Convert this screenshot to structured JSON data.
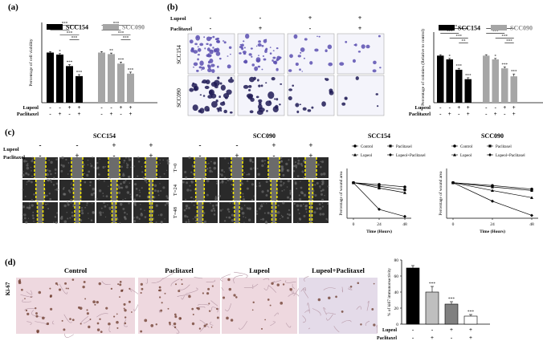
{
  "panels": {
    "a": "(a)",
    "b": "(b)",
    "c": "(c)",
    "d": "(d)"
  },
  "lines": {
    "scc154": "SCC154",
    "scc090": "SCC090"
  },
  "treatments": {
    "lupeol": "Lupeol",
    "paclitaxel": "Paclitaxel",
    "lupeol_row": [
      "-",
      "-",
      "+",
      "+"
    ],
    "paclitaxel_row": [
      "-",
      "+",
      "-",
      "+"
    ],
    "d_lupeol_row": [
      "-",
      "-",
      "+",
      "+"
    ],
    "d_paclitaxel_row": [
      "-",
      "+",
      "-",
      "+"
    ]
  },
  "micrograph_rows": {
    "c": [
      "T=0",
      "T=24",
      "T=48"
    ],
    "d_row": "Ki-67"
  },
  "ihc_titles": [
    "Control",
    "Paclitaxel",
    "Lupeol",
    "Lupeol+Paclitaxel"
  ],
  "colors": {
    "black": "#000000",
    "grey": "#a6a6a6",
    "stain": "#5a4fb0",
    "ihc_bg": "#eed8df",
    "ihc_nuclei": "#6b3a2a"
  },
  "chart_data": [
    {
      "id": "a",
      "type": "bar",
      "ylabel": "Percentage of cell viability",
      "categories": [
        "Control",
        "Paclitaxel",
        "Lupeol",
        "Lupeol+Paclitaxel"
      ],
      "series": [
        {
          "name": "SCC154",
          "values": [
            100,
            96,
            73,
            53
          ],
          "errors": [
            2,
            2,
            3,
            3
          ],
          "marks": [
            "",
            "*",
            "***",
            "***"
          ]
        },
        {
          "name": "SCC090",
          "values": [
            100,
            97,
            78,
            58
          ],
          "errors": [
            2,
            2,
            3,
            3
          ],
          "marks": [
            "",
            "**",
            "***",
            "***"
          ]
        }
      ],
      "ylim": [
        0,
        160
      ],
      "significance": "***",
      "legend": "top"
    },
    {
      "id": "b",
      "type": "bar",
      "ylabel": "Percentage of colonies (Relative to control)",
      "categories": [
        "Control",
        "Paclitaxel",
        "Lupeol",
        "Lupeol+Paclitaxel"
      ],
      "series": [
        {
          "name": "SCC154",
          "values": [
            100,
            92,
            70,
            50
          ],
          "errors": [
            2,
            2,
            3,
            3
          ],
          "marks": [
            "",
            "*",
            "***",
            "***"
          ]
        },
        {
          "name": "SCC090",
          "values": [
            100,
            92,
            73,
            56
          ],
          "errors": [
            2,
            2,
            3,
            5
          ],
          "marks": [
            "",
            "*",
            "***",
            "***"
          ]
        }
      ],
      "ylim": [
        0,
        150
      ],
      "extra_significance": "**",
      "legend": "top"
    },
    {
      "id": "c1",
      "type": "line",
      "title": "SCC154",
      "xlabel": "Time (Hours)",
      "ylabel": "Percentage of wound area",
      "x": [
        0,
        24,
        48
      ],
      "series": [
        {
          "name": "Control",
          "values": [
            100,
            95,
            88
          ]
        },
        {
          "name": "Paclitaxel",
          "values": [
            100,
            90,
            80
          ]
        },
        {
          "name": "Lupeol",
          "values": [
            100,
            85,
            72
          ]
        },
        {
          "name": "Lupeol+Paclitaxel",
          "values": [
            100,
            25,
            5
          ]
        }
      ],
      "xticks": [
        0,
        24,
        48
      ],
      "ylim": [
        0,
        140
      ],
      "legend": "top"
    },
    {
      "id": "c2",
      "type": "line",
      "title": "SCC090",
      "xlabel": "Time (Hours)",
      "ylabel": "Percentage of wound area",
      "x": [
        0,
        24,
        48
      ],
      "series": [
        {
          "name": "Control",
          "values": [
            100,
            92,
            82
          ]
        },
        {
          "name": "Paclitaxel",
          "values": [
            100,
            88,
            78
          ]
        },
        {
          "name": "Lupeol",
          "values": [
            100,
            78,
            58
          ]
        },
        {
          "name": "Lupeol+Paclitaxel",
          "values": [
            100,
            48,
            8
          ]
        }
      ],
      "xticks": [
        0,
        24,
        48
      ],
      "ylim": [
        0,
        140
      ],
      "legend": "top"
    },
    {
      "id": "d",
      "type": "bar",
      "ylabel": "% of ki67 immunoreactivity",
      "categories": [
        "Control",
        "Paclitaxel",
        "Lupeol",
        "Lupeol+Paclitaxel"
      ],
      "values": [
        70,
        40,
        25,
        10
      ],
      "errors": [
        3,
        7,
        3,
        2
      ],
      "fills": [
        "#000000",
        "#bfbfbf",
        "#808080",
        "#ffffff"
      ],
      "marks": [
        "",
        "***",
        "***",
        "***"
      ],
      "yticks": [
        0,
        20,
        40,
        60,
        80
      ],
      "ylim": [
        0,
        80
      ]
    }
  ]
}
